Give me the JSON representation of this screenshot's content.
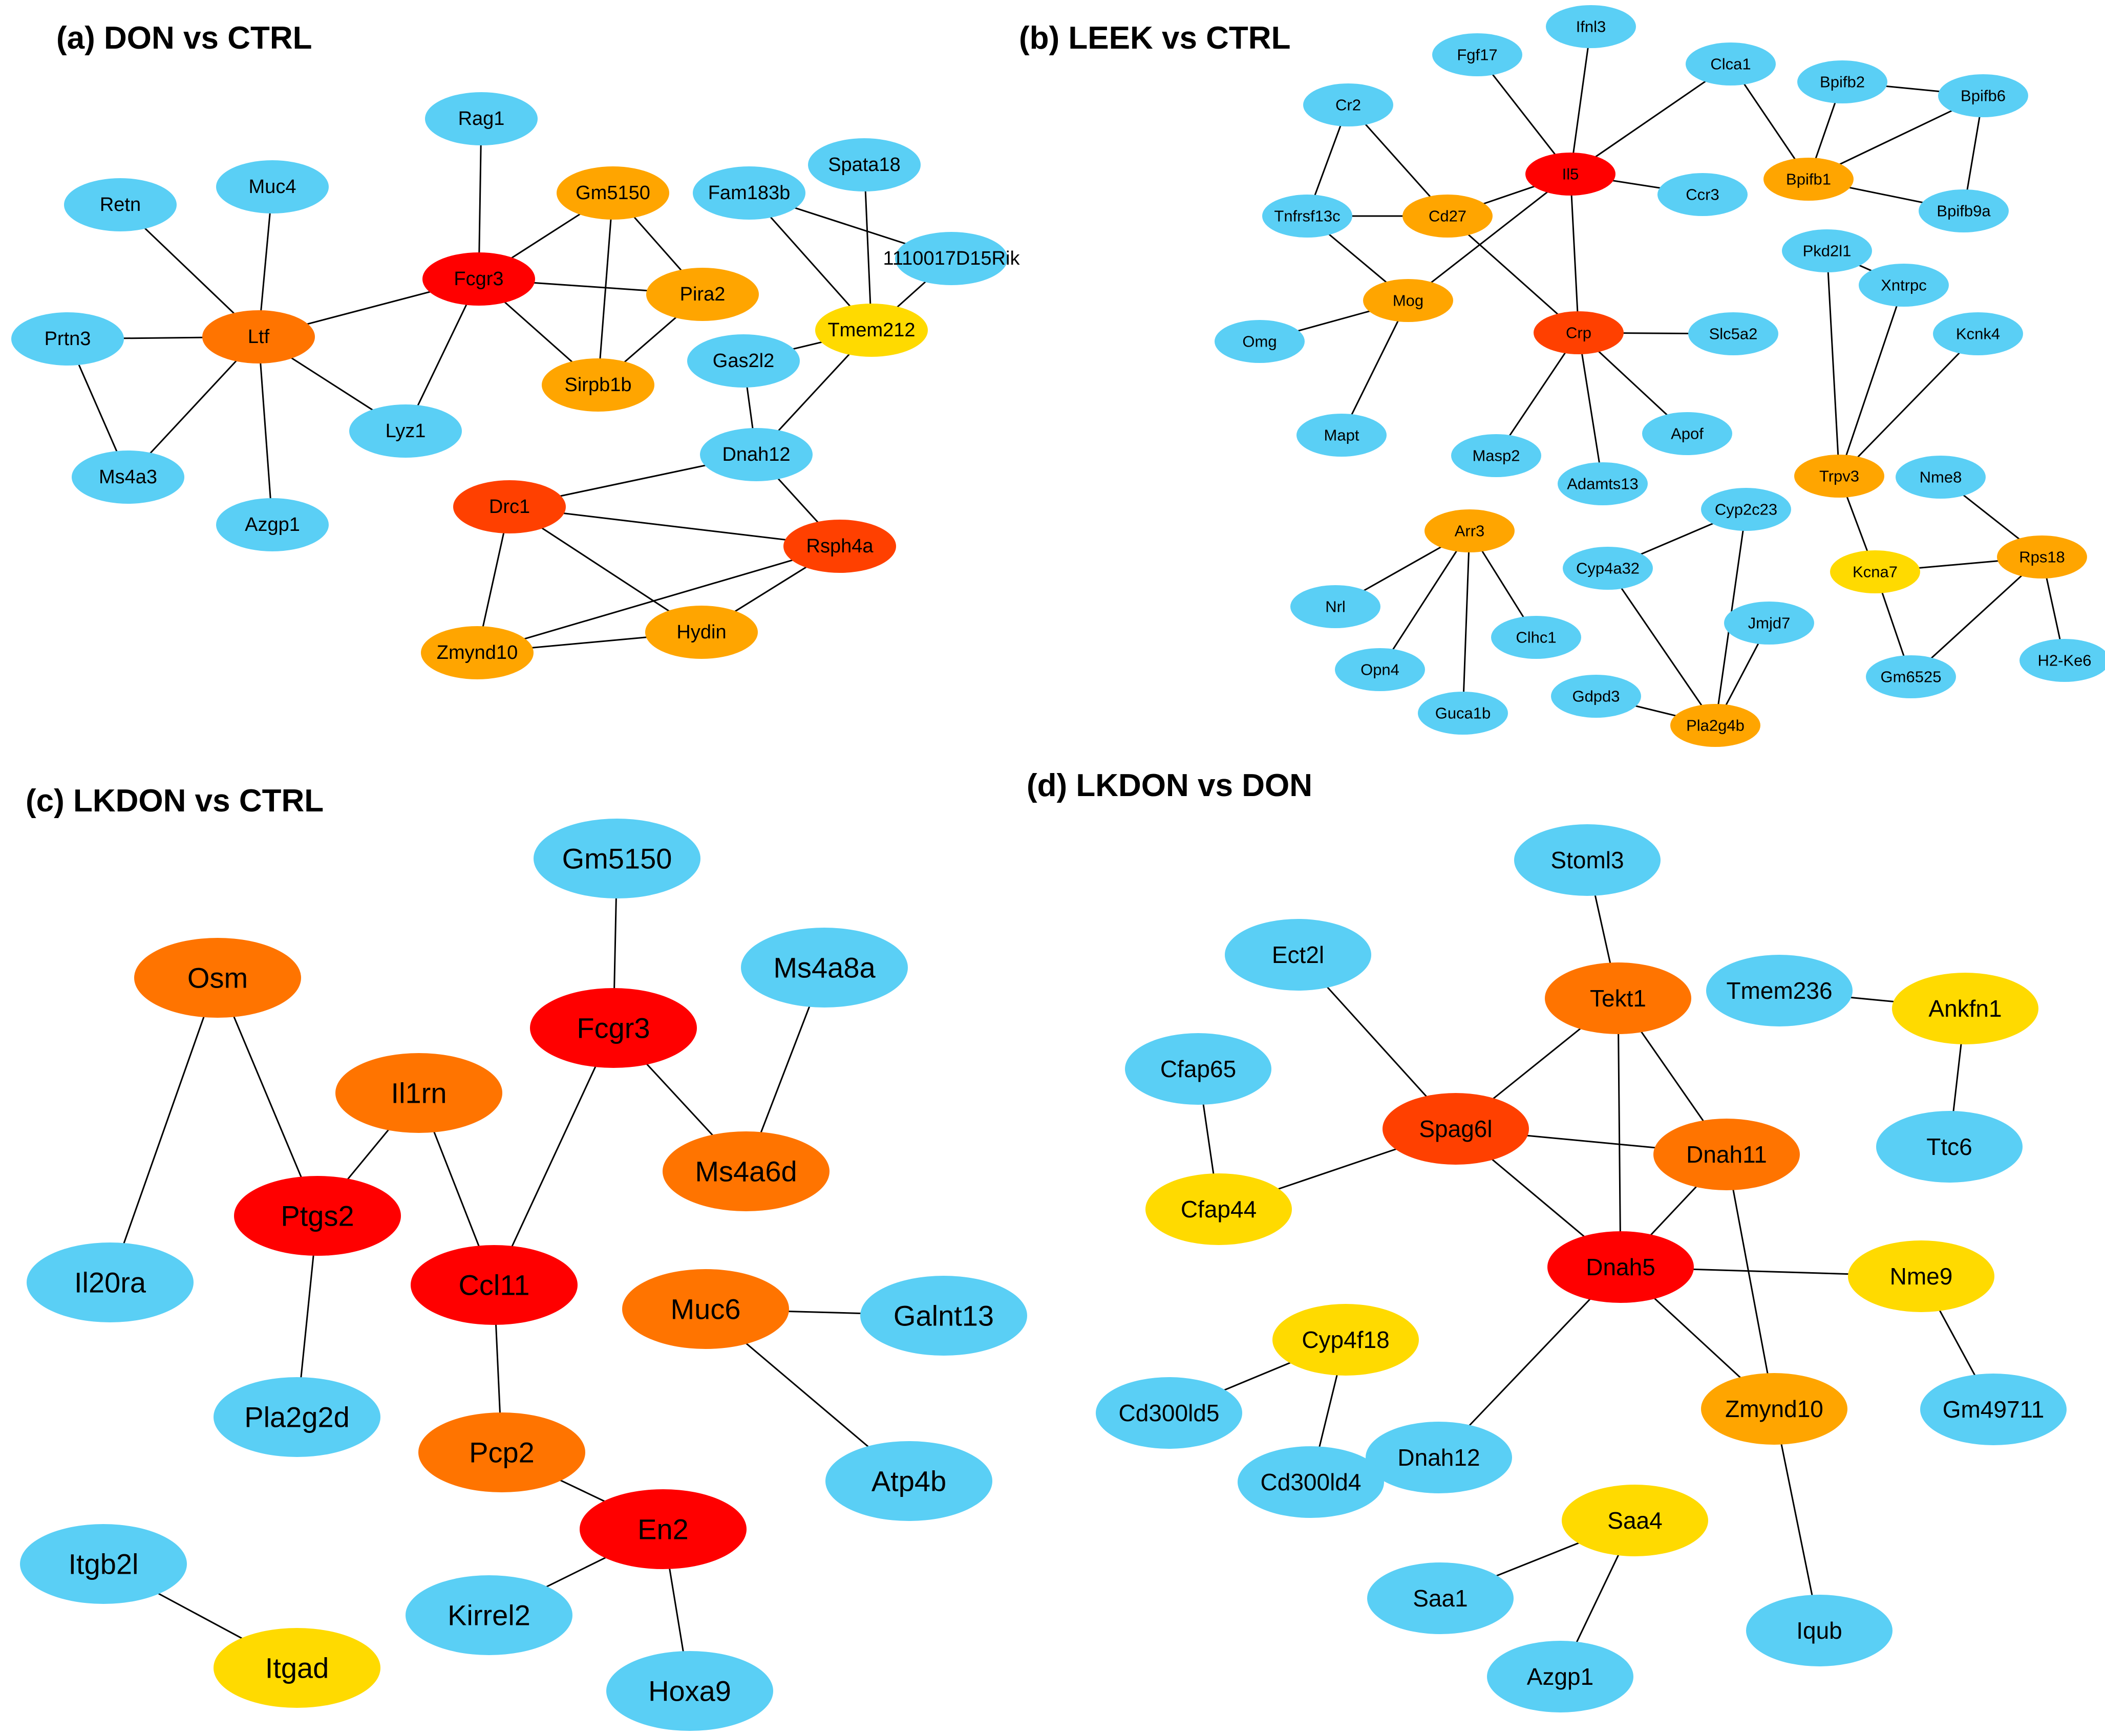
{
  "colors": {
    "red": "#FF0000",
    "red_orange": "#FF4000",
    "orange": "#FF7400",
    "amber": "#FFA500",
    "yellow": "#FFDA00",
    "blue": "#5ACFF5"
  },
  "panels": [
    {
      "title": "(a) DON vs CTRL",
      "nodes": [
        {
          "id": "Rag1",
          "color": "blue"
        },
        {
          "id": "Retn",
          "color": "blue"
        },
        {
          "id": "Muc4",
          "color": "blue"
        },
        {
          "id": "Gm5150",
          "color": "amber"
        },
        {
          "id": "Fam183b",
          "color": "blue"
        },
        {
          "id": "Spata18",
          "color": "blue"
        },
        {
          "id": "1110017D15Rik",
          "color": "blue"
        },
        {
          "id": "Fcgr3",
          "color": "red"
        },
        {
          "id": "Pira2",
          "color": "amber"
        },
        {
          "id": "Prtn3",
          "color": "blue"
        },
        {
          "id": "Ltf",
          "color": "orange"
        },
        {
          "id": "Tmem212",
          "color": "yellow"
        },
        {
          "id": "Gas2l2",
          "color": "blue"
        },
        {
          "id": "Sirpb1b",
          "color": "amber"
        },
        {
          "id": "Lyz1",
          "color": "blue"
        },
        {
          "id": "Dnah12",
          "color": "blue"
        },
        {
          "id": "Ms4a3",
          "color": "blue"
        },
        {
          "id": "Drc1",
          "color": "red_orange"
        },
        {
          "id": "Azgp1",
          "color": "blue"
        },
        {
          "id": "Rsph4a",
          "color": "red_orange"
        },
        {
          "id": "Hydin",
          "color": "amber"
        },
        {
          "id": "Zmynd10",
          "color": "amber"
        }
      ],
      "edges": [
        [
          "Retn",
          "Ltf"
        ],
        [
          "Muc4",
          "Ltf"
        ],
        [
          "Prtn3",
          "Ltf"
        ],
        [
          "Prtn3",
          "Ms4a3"
        ],
        [
          "Ms4a3",
          "Ltf"
        ],
        [
          "Azgp1",
          "Ltf"
        ],
        [
          "Ltf",
          "Lyz1"
        ],
        [
          "Ltf",
          "Fcgr3"
        ],
        [
          "Rag1",
          "Fcgr3"
        ],
        [
          "Fcgr3",
          "Gm5150"
        ],
        [
          "Fcgr3",
          "Pira2"
        ],
        [
          "Fcgr3",
          "Sirpb1b"
        ],
        [
          "Fcgr3",
          "Lyz1"
        ],
        [
          "Gm5150",
          "Pira2"
        ],
        [
          "Gm5150",
          "Sirpb1b"
        ],
        [
          "Pira2",
          "Sirpb1b"
        ],
        [
          "Fam183b",
          "Tmem212"
        ],
        [
          "Fam183b",
          "1110017D15Rik"
        ],
        [
          "Spata18",
          "Tmem212"
        ],
        [
          "1110017D15Rik",
          "Tmem212"
        ],
        [
          "Gas2l2",
          "Tmem212"
        ],
        [
          "Gas2l2",
          "Dnah12"
        ],
        [
          "Tmem212",
          "Dnah12"
        ],
        [
          "Dnah12",
          "Drc1"
        ],
        [
          "Dnah12",
          "Rsph4a"
        ],
        [
          "Drc1",
          "Rsph4a"
        ],
        [
          "Drc1",
          "Hydin"
        ],
        [
          "Drc1",
          "Zmynd10"
        ],
        [
          "Rsph4a",
          "Hydin"
        ],
        [
          "Rsph4a",
          "Zmynd10"
        ],
        [
          "Hydin",
          "Zmynd10"
        ]
      ]
    },
    {
      "title": "(b) LEEK vs CTRL",
      "nodes": [
        {
          "id": "Ifnl3",
          "color": "blue"
        },
        {
          "id": "Fgf17",
          "color": "blue"
        },
        {
          "id": "Clca1",
          "color": "blue"
        },
        {
          "id": "Bpifb2",
          "color": "blue"
        },
        {
          "id": "Bpifb6",
          "color": "blue"
        },
        {
          "id": "Cr2",
          "color": "blue"
        },
        {
          "id": "Il5",
          "color": "red"
        },
        {
          "id": "Bpifb1",
          "color": "amber"
        },
        {
          "id": "Ccr3",
          "color": "blue"
        },
        {
          "id": "Tnfrsf13c",
          "color": "blue"
        },
        {
          "id": "Cd27",
          "color": "amber"
        },
        {
          "id": "Bpifb9a",
          "color": "blue"
        },
        {
          "id": "Pkd2l1",
          "color": "blue"
        },
        {
          "id": "Xntrpc",
          "color": "blue"
        },
        {
          "id": "Mog",
          "color": "amber"
        },
        {
          "id": "Omg",
          "color": "blue"
        },
        {
          "id": "Crp",
          "color": "red_orange"
        },
        {
          "id": "Slc5a2",
          "color": "blue"
        },
        {
          "id": "Kcnk4",
          "color": "blue"
        },
        {
          "id": "Mapt",
          "color": "blue"
        },
        {
          "id": "Apof",
          "color": "blue"
        },
        {
          "id": "Masp2",
          "color": "blue"
        },
        {
          "id": "Adamts13",
          "color": "blue"
        },
        {
          "id": "Trpv3",
          "color": "amber"
        },
        {
          "id": "Nme8",
          "color": "blue"
        },
        {
          "id": "Cyp2c23",
          "color": "blue"
        },
        {
          "id": "Arr3",
          "color": "amber"
        },
        {
          "id": "Rps18",
          "color": "amber"
        },
        {
          "id": "Cyp4a32",
          "color": "blue"
        },
        {
          "id": "Kcna7",
          "color": "yellow"
        },
        {
          "id": "Nrl",
          "color": "blue"
        },
        {
          "id": "Jmjd7",
          "color": "blue"
        },
        {
          "id": "Clhc1",
          "color": "blue"
        },
        {
          "id": "Opn4",
          "color": "blue"
        },
        {
          "id": "Gm6525",
          "color": "blue"
        },
        {
          "id": "H2-Ke6",
          "color": "blue"
        },
        {
          "id": "Gdpd3",
          "color": "blue"
        },
        {
          "id": "Guca1b",
          "color": "blue"
        },
        {
          "id": "Pla2g4b",
          "color": "amber"
        }
      ],
      "edges": [
        [
          "Ifnl3",
          "Il5"
        ],
        [
          "Fgf17",
          "Il5"
        ],
        [
          "Clca1",
          "Il5"
        ],
        [
          "Clca1",
          "Bpifb1"
        ],
        [
          "Ccr3",
          "Il5"
        ],
        [
          "Il5",
          "Cd27"
        ],
        [
          "Il5",
          "Mog"
        ],
        [
          "Il5",
          "Crp"
        ],
        [
          "Cr2",
          "Tnfrsf13c"
        ],
        [
          "Cr2",
          "Cd27"
        ],
        [
          "Tnfrsf13c",
          "Cd27"
        ],
        [
          "Tnfrsf13c",
          "Mog"
        ],
        [
          "Cd27",
          "Crp"
        ],
        [
          "Mog",
          "Omg"
        ],
        [
          "Mog",
          "Mapt"
        ],
        [
          "Crp",
          "Slc5a2"
        ],
        [
          "Crp",
          "Masp2"
        ],
        [
          "Crp",
          "Adamts13"
        ],
        [
          "Crp",
          "Apof"
        ],
        [
          "Bpifb2",
          "Bpifb6"
        ],
        [
          "Bpifb2",
          "Bpifb1"
        ],
        [
          "Bpifb6",
          "Bpifb1"
        ],
        [
          "Bpifb6",
          "Bpifb9a"
        ],
        [
          "Bpifb1",
          "Bpifb9a"
        ],
        [
          "Pkd2l1",
          "Xntrpc"
        ],
        [
          "Pkd2l1",
          "Trpv3"
        ],
        [
          "Xntrpc",
          "Trpv3"
        ],
        [
          "Kcnk4",
          "Trpv3"
        ],
        [
          "Trpv3",
          "Kcna7"
        ],
        [
          "Kcna7",
          "Rps18"
        ],
        [
          "Kcna7",
          "Gm6525"
        ],
        [
          "Nme8",
          "Rps18"
        ],
        [
          "Rps18",
          "Gm6525"
        ],
        [
          "Rps18",
          "H2-Ke6"
        ],
        [
          "Arr3",
          "Nrl"
        ],
        [
          "Arr3",
          "Opn4"
        ],
        [
          "Arr3",
          "Guca1b"
        ],
        [
          "Arr3",
          "Clhc1"
        ],
        [
          "Cyp2c23",
          "Cyp4a32"
        ],
        [
          "Cyp2c23",
          "Pla2g4b"
        ],
        [
          "Cyp4a32",
          "Pla2g4b"
        ],
        [
          "Jmjd7",
          "Pla2g4b"
        ],
        [
          "Gdpd3",
          "Pla2g4b"
        ]
      ]
    },
    {
      "title": "(c) LKDON vs CTRL",
      "nodes": [
        {
          "id": "Gm5150",
          "color": "blue"
        },
        {
          "id": "Osm",
          "color": "orange"
        },
        {
          "id": "Ms4a8a",
          "color": "blue"
        },
        {
          "id": "Fcgr3",
          "color": "red"
        },
        {
          "id": "Il1rn",
          "color": "orange"
        },
        {
          "id": "Ms4a6d",
          "color": "orange"
        },
        {
          "id": "Ptgs2",
          "color": "red"
        },
        {
          "id": "Il20ra",
          "color": "blue"
        },
        {
          "id": "Ccl11",
          "color": "red"
        },
        {
          "id": "Muc6",
          "color": "orange"
        },
        {
          "id": "Galnt13",
          "color": "blue"
        },
        {
          "id": "Pla2g2d",
          "color": "blue"
        },
        {
          "id": "Pcp2",
          "color": "orange"
        },
        {
          "id": "Atp4b",
          "color": "blue"
        },
        {
          "id": "En2",
          "color": "red"
        },
        {
          "id": "Itgb2l",
          "color": "blue"
        },
        {
          "id": "Kirrel2",
          "color": "blue"
        },
        {
          "id": "Itgad",
          "color": "yellow"
        },
        {
          "id": "Hoxa9",
          "color": "blue"
        }
      ],
      "edges": [
        [
          "Gm5150",
          "Fcgr3"
        ],
        [
          "Fcgr3",
          "Ms4a6d"
        ],
        [
          "Fcgr3",
          "Ccl11"
        ],
        [
          "Ms4a8a",
          "Ms4a6d"
        ],
        [
          "Osm",
          "Ptgs2"
        ],
        [
          "Osm",
          "Il20ra"
        ],
        [
          "Il1rn",
          "Ptgs2"
        ],
        [
          "Il1rn",
          "Ccl11"
        ],
        [
          "Ptgs2",
          "Pla2g2d"
        ],
        [
          "Ccl11",
          "Pcp2"
        ],
        [
          "Pcp2",
          "En2"
        ],
        [
          "En2",
          "Kirrel2"
        ],
        [
          "En2",
          "Hoxa9"
        ],
        [
          "Muc6",
          "Galnt13"
        ],
        [
          "Muc6",
          "Atp4b"
        ],
        [
          "Itgb2l",
          "Itgad"
        ]
      ]
    },
    {
      "title": "(d) LKDON vs DON",
      "nodes": [
        {
          "id": "Stoml3",
          "color": "blue"
        },
        {
          "id": "Ect2l",
          "color": "blue"
        },
        {
          "id": "Tekt1",
          "color": "orange"
        },
        {
          "id": "Tmem236",
          "color": "blue"
        },
        {
          "id": "Ankfn1",
          "color": "yellow"
        },
        {
          "id": "Cfap65",
          "color": "blue"
        },
        {
          "id": "Spag6l",
          "color": "red_orange"
        },
        {
          "id": "Dnah11",
          "color": "orange"
        },
        {
          "id": "Ttc6",
          "color": "blue"
        },
        {
          "id": "Cfap44",
          "color": "yellow"
        },
        {
          "id": "Dnah5",
          "color": "red"
        },
        {
          "id": "Nme9",
          "color": "yellow"
        },
        {
          "id": "Cyp4f18",
          "color": "yellow"
        },
        {
          "id": "Cd300ld5",
          "color": "blue"
        },
        {
          "id": "Zmynd10",
          "color": "amber"
        },
        {
          "id": "Gm49711",
          "color": "blue"
        },
        {
          "id": "Dnah12",
          "color": "blue"
        },
        {
          "id": "Cd300ld4",
          "color": "blue"
        },
        {
          "id": "Saa4",
          "color": "yellow"
        },
        {
          "id": "Saa1",
          "color": "blue"
        },
        {
          "id": "Iqub",
          "color": "blue"
        },
        {
          "id": "Azgp1",
          "color": "blue"
        }
      ],
      "edges": [
        [
          "Stoml3",
          "Tekt1"
        ],
        [
          "Ect2l",
          "Spag6l"
        ],
        [
          "Tekt1",
          "Spag6l"
        ],
        [
          "Tekt1",
          "Dnah11"
        ],
        [
          "Tekt1",
          "Dnah5"
        ],
        [
          "Spag6l",
          "Dnah11"
        ],
        [
          "Spag6l",
          "Dnah5"
        ],
        [
          "Spag6l",
          "Cfap44"
        ],
        [
          "Cfap65",
          "Cfap44"
        ],
        [
          "Dnah11",
          "Dnah5"
        ],
        [
          "Dnah11",
          "Zmynd10"
        ],
        [
          "Dnah5",
          "Nme9"
        ],
        [
          "Dnah5",
          "Zmynd10"
        ],
        [
          "Dnah5",
          "Dnah12"
        ],
        [
          "Nme9",
          "Gm49711"
        ],
        [
          "Tmem236",
          "Ankfn1"
        ],
        [
          "Ankfn1",
          "Ttc6"
        ],
        [
          "Cyp4f18",
          "Cd300ld5"
        ],
        [
          "Cyp4f18",
          "Cd300ld4"
        ],
        [
          "Zmynd10",
          "Iqub"
        ],
        [
          "Saa4",
          "Saa1"
        ],
        [
          "Saa4",
          "Azgp1"
        ]
      ]
    }
  ]
}
